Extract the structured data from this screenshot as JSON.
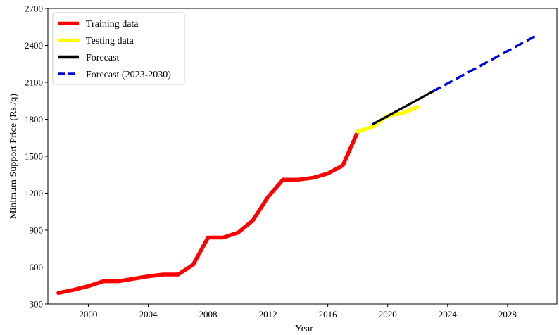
{
  "chart_data": {
    "type": "line",
    "title": "",
    "xlabel": "Year",
    "ylabel": "Minimum Support Price (Rs./q)",
    "xlim": [
      1997.3,
      2031.3
    ],
    "ylim": [
      300,
      2700
    ],
    "xticks": [
      2000,
      2004,
      2008,
      2012,
      2016,
      2020,
      2024,
      2028
    ],
    "yticks": [
      300,
      600,
      900,
      1200,
      1500,
      1800,
      2100,
      2400,
      2700
    ],
    "grid": false,
    "legend_position": "top-left",
    "series": [
      {
        "name": "Training data",
        "color": "#ff0000",
        "style": "solid",
        "x": [
          1998,
          1999,
          2000,
          2001,
          2002,
          2003,
          2004,
          2005,
          2006,
          2007,
          2008,
          2009,
          2010,
          2011,
          2012,
          2013,
          2014,
          2015,
          2016,
          2017,
          2018
        ],
        "y": [
          390,
          415,
          445,
          485,
          485,
          505,
          525,
          540,
          540,
          620,
          840,
          840,
          880,
          980,
          1170,
          1310,
          1310,
          1325,
          1360,
          1425,
          1700
        ]
      },
      {
        "name": "Testing data",
        "color": "#ffff00",
        "style": "solid",
        "x": [
          2018,
          2019,
          2020,
          2021,
          2022
        ],
        "y": [
          1700,
          1740,
          1830,
          1850,
          1900
        ]
      },
      {
        "name": "Forecast",
        "color": "#000000",
        "style": "solid",
        "x": [
          2019,
          2023
        ],
        "y": [
          1760,
          2025
        ]
      },
      {
        "name": "Forecast (2023-2030)",
        "color": "#0000dd",
        "style": "dashed",
        "x": [
          2023,
          2030
        ],
        "y": [
          2025,
          2485
        ]
      }
    ]
  }
}
